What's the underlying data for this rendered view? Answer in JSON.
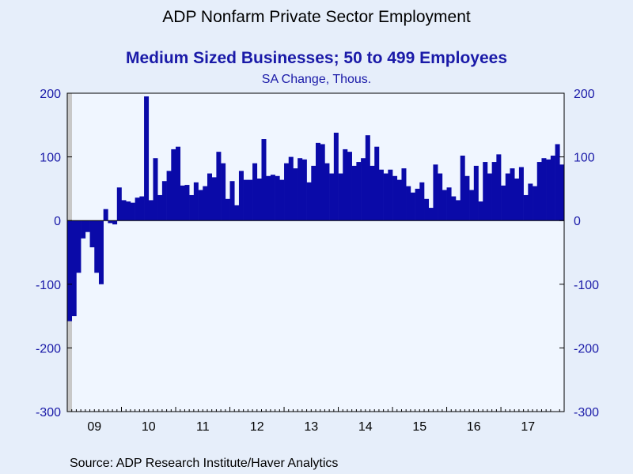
{
  "chart_data": {
    "type": "bar",
    "title": "ADP Nonfarm Private Sector Employment",
    "subtitle": "Medium Sized Businesses; 50 to 499 Employees",
    "units_label": "SA Change, Thous.",
    "source": "Source:  ADP Research Institute/Haver Analytics",
    "ylim": [
      -300,
      200
    ],
    "yticks": [
      200,
      100,
      0,
      -100,
      -200,
      -300
    ],
    "ytick_labels": [
      "200",
      "100",
      "0",
      "-100",
      "-200",
      "-300"
    ],
    "x_labels": [
      "09",
      "10",
      "11",
      "12",
      "13",
      "14",
      "15",
      "16",
      "17"
    ],
    "x_start": "2009-01",
    "frequency": "monthly",
    "bar_color": "#0a0aa8",
    "recession_shade_color": "#c8c8c8",
    "recession_months": [
      "2009-01",
      "2009-02",
      "2009-03",
      "2009-04",
      "2009-05",
      "2009-06"
    ],
    "grid": false,
    "values": [
      -158,
      -150,
      -82,
      -28,
      -18,
      -42,
      -82,
      -100,
      18,
      -4,
      -6,
      52,
      32,
      30,
      28,
      36,
      38,
      195,
      32,
      98,
      40,
      62,
      78,
      112,
      116,
      55,
      56,
      40,
      60,
      48,
      54,
      74,
      68,
      108,
      90,
      34,
      62,
      24,
      78,
      64,
      64,
      90,
      66,
      128,
      70,
      72,
      70,
      64,
      90,
      100,
      82,
      98,
      96,
      60,
      86,
      122,
      120,
      90,
      74,
      138,
      74,
      112,
      108,
      86,
      92,
      98,
      134,
      86,
      116,
      80,
      74,
      80,
      70,
      64,
      82,
      54,
      44,
      50,
      60,
      34,
      20,
      88,
      74,
      48,
      52,
      38,
      32,
      102,
      70,
      48,
      86,
      30,
      92,
      74,
      92,
      104,
      55,
      74,
      82,
      66,
      84,
      40,
      58,
      54,
      92,
      98,
      96,
      102,
      120,
      88
    ]
  }
}
